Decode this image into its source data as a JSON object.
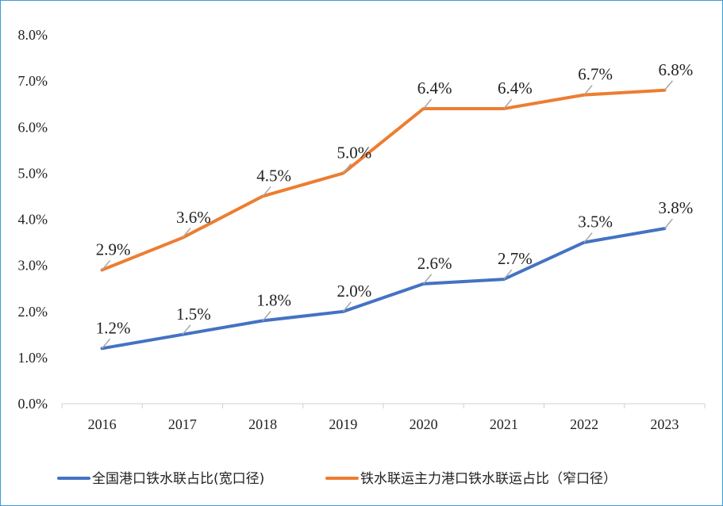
{
  "chart_data": {
    "type": "line",
    "categories": [
      "2016",
      "2017",
      "2018",
      "2019",
      "2020",
      "2021",
      "2022",
      "2023"
    ],
    "y_ticks": [
      "0.0%",
      "1.0%",
      "2.0%",
      "3.0%",
      "4.0%",
      "5.0%",
      "6.0%",
      "7.0%",
      "8.0%"
    ],
    "ylim": [
      0,
      8
    ],
    "grid": false,
    "legend_position": "bottom",
    "series": [
      {
        "name": "全国港口铁水联占比(宽口径)",
        "color": "#4472c4",
        "values": [
          1.2,
          1.5,
          1.8,
          2.0,
          2.6,
          2.7,
          3.5,
          3.8
        ],
        "labels": [
          "1.2%",
          "1.5%",
          "1.8%",
          "2.0%",
          "2.6%",
          "2.7%",
          "3.5%",
          "3.8%"
        ]
      },
      {
        "name": "铁水联运主力港口铁水联运占比（窄口径）",
        "color": "#ed7d31",
        "values": [
          2.9,
          3.6,
          4.5,
          5.0,
          6.4,
          6.4,
          6.7,
          6.8
        ],
        "labels": [
          "2.9%",
          "3.6%",
          "4.5%",
          "5.0%",
          "6.4%",
          "6.4%",
          "6.7%",
          "6.8%"
        ]
      }
    ]
  }
}
